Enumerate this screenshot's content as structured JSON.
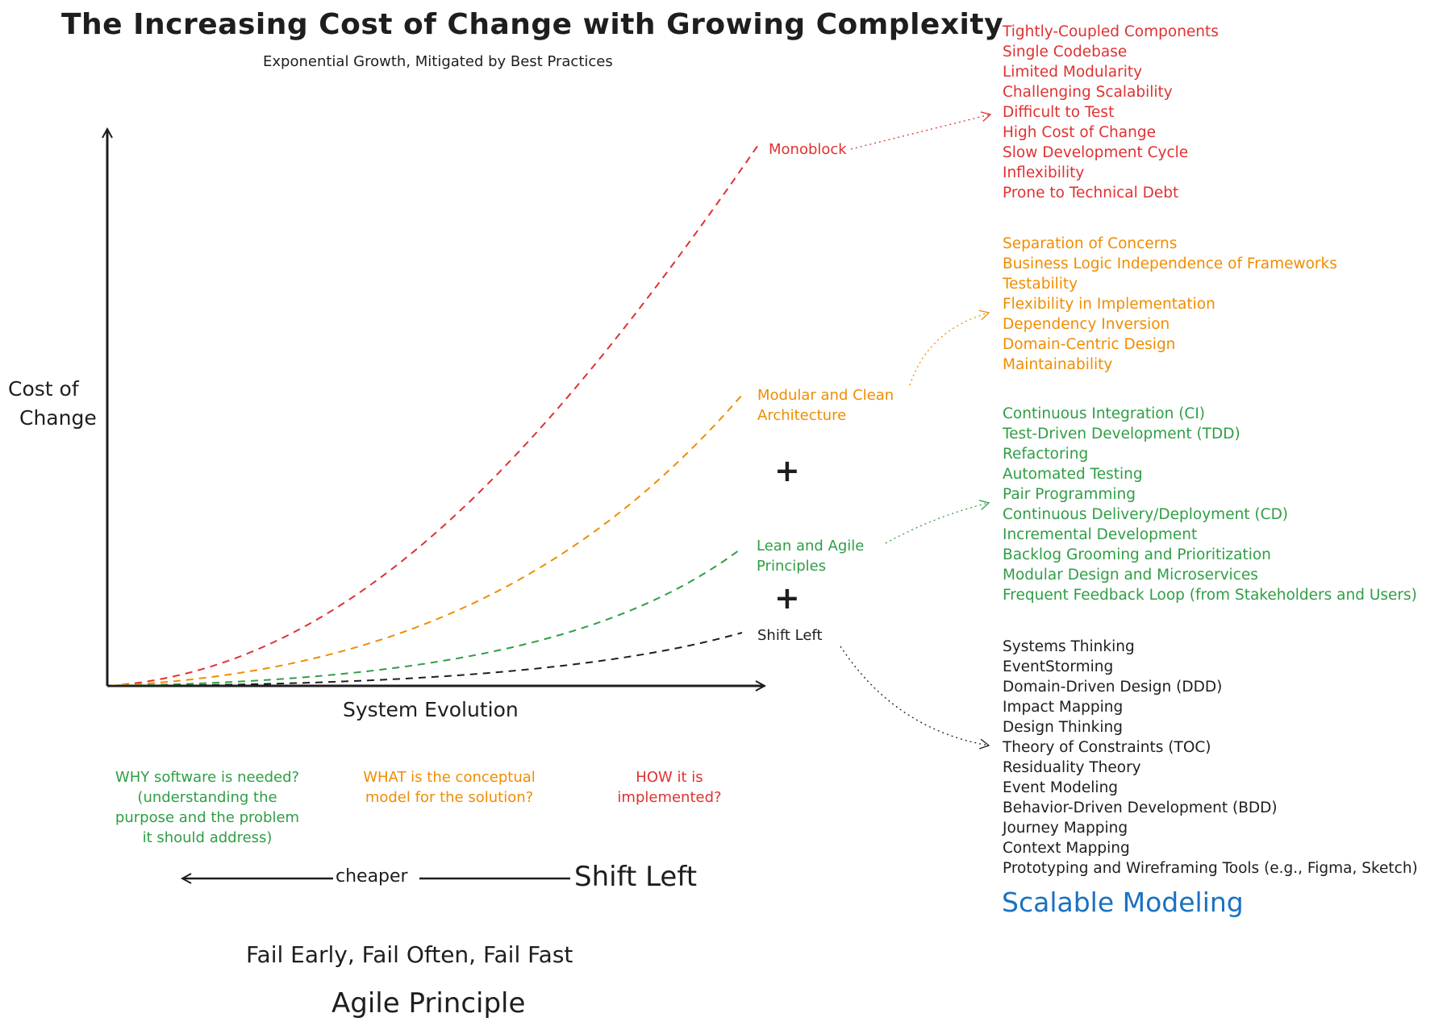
{
  "title": "The Increasing Cost of Change with Growing Complexity",
  "subtitle": "Exponential Growth, Mitigated by Best Practices",
  "axes": {
    "y_label_line1": "Cost of",
    "y_label_line2": "Change",
    "x_label": "System Evolution"
  },
  "curves": {
    "monoblock": "Monoblock",
    "modular_line1": "Modular and Clean",
    "modular_line2": "Architecture",
    "lean_line1": "Lean and Agile",
    "lean_line2": "Principles",
    "shift_left": "Shift Left",
    "plus": "+"
  },
  "lists": {
    "monoblock_items": [
      "Tightly-Coupled Components",
      "Single Codebase",
      "Limited Modularity",
      "Challenging Scalability",
      "Difficult to Test",
      "High Cost of Change",
      "Slow Development Cycle",
      "Inflexibility",
      "Prone to Technical Debt"
    ],
    "modular_items": [
      "Separation of Concerns",
      "Business Logic Independence of Frameworks",
      "Testability",
      "Flexibility in Implementation",
      "Dependency Inversion",
      "Domain-Centric Design",
      "Maintainability"
    ],
    "agile_items": [
      "Continuous Integration (CI)",
      "Test-Driven Development (TDD)",
      "Refactoring",
      "Automated Testing",
      "Pair Programming",
      "Continuous Delivery/Deployment (CD)",
      "Incremental Development",
      "Backlog Grooming and Prioritization",
      "Modular Design and Microservices",
      "Frequent Feedback Loop (from Stakeholders and Users)"
    ],
    "shift_left_items": [
      "Systems Thinking",
      "EventStorming",
      "Domain-Driven Design (DDD)",
      "Impact Mapping",
      "Design Thinking",
      "Theory of Constraints (TOC)",
      "Residuality Theory",
      "Event Modeling",
      "Behavior-Driven Development (BDD)",
      "Journey Mapping",
      "Context Mapping",
      "Prototyping and Wireframing Tools (e.g., Figma, Sketch)"
    ],
    "scalable_modeling": "Scalable Modeling"
  },
  "questions": {
    "why_line1": "WHY software is needed?",
    "why_line2": "(understanding the",
    "why_line3": "purpose and the problem",
    "why_line4": "it should address)",
    "what_line1": "WHAT is the conceptual",
    "what_line2": "model for the solution?",
    "how_line1": "HOW it is",
    "how_line2": "implemented?"
  },
  "bottom": {
    "cheaper": "cheaper",
    "shift_left": "Shift Left",
    "fail_fast": "Fail Early, Fail Often, Fail Fast",
    "agile_principle": "Agile Principle"
  },
  "colors": {
    "red": "#e03131",
    "orange": "#f08c00",
    "green": "#2f9e44",
    "black": "#1e1e1e",
    "blue": "#1971c2"
  }
}
